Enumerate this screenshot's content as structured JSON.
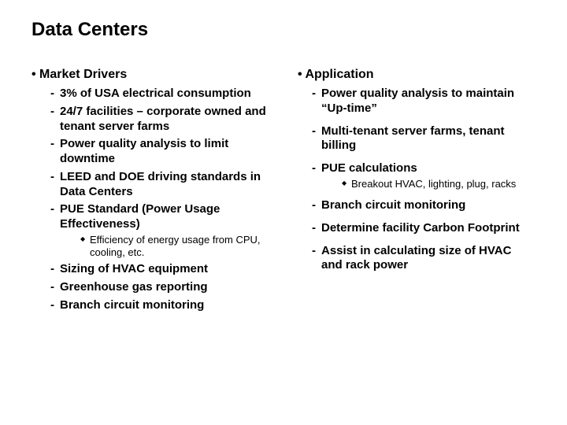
{
  "title": "Data Centers",
  "left": {
    "heading": "Market Drivers",
    "items": [
      "3% of USA electrical consumption",
      "24/7 facilities – corporate owned and tenant server farms",
      "Power quality analysis to limit downtime",
      "LEED and DOE driving standards in Data Centers",
      "PUE Standard (Power Usage Effectiveness)"
    ],
    "pue_sub": "Efficiency of energy usage from CPU, cooling, etc.",
    "items2": [
      "Sizing of HVAC equipment",
      "Greenhouse gas reporting",
      "Branch circuit monitoring"
    ]
  },
  "right": {
    "heading": "Application",
    "items": [
      "Power quality analysis to maintain “Up-time”",
      "Multi-tenant server farms, tenant billing",
      "PUE calculations"
    ],
    "pue_sub": "Breakout HVAC, lighting, plug, racks",
    "items2": [
      "Branch circuit monitoring",
      "Determine facility Carbon Footprint",
      "Assist in calculating size of HVAC and rack power"
    ]
  }
}
